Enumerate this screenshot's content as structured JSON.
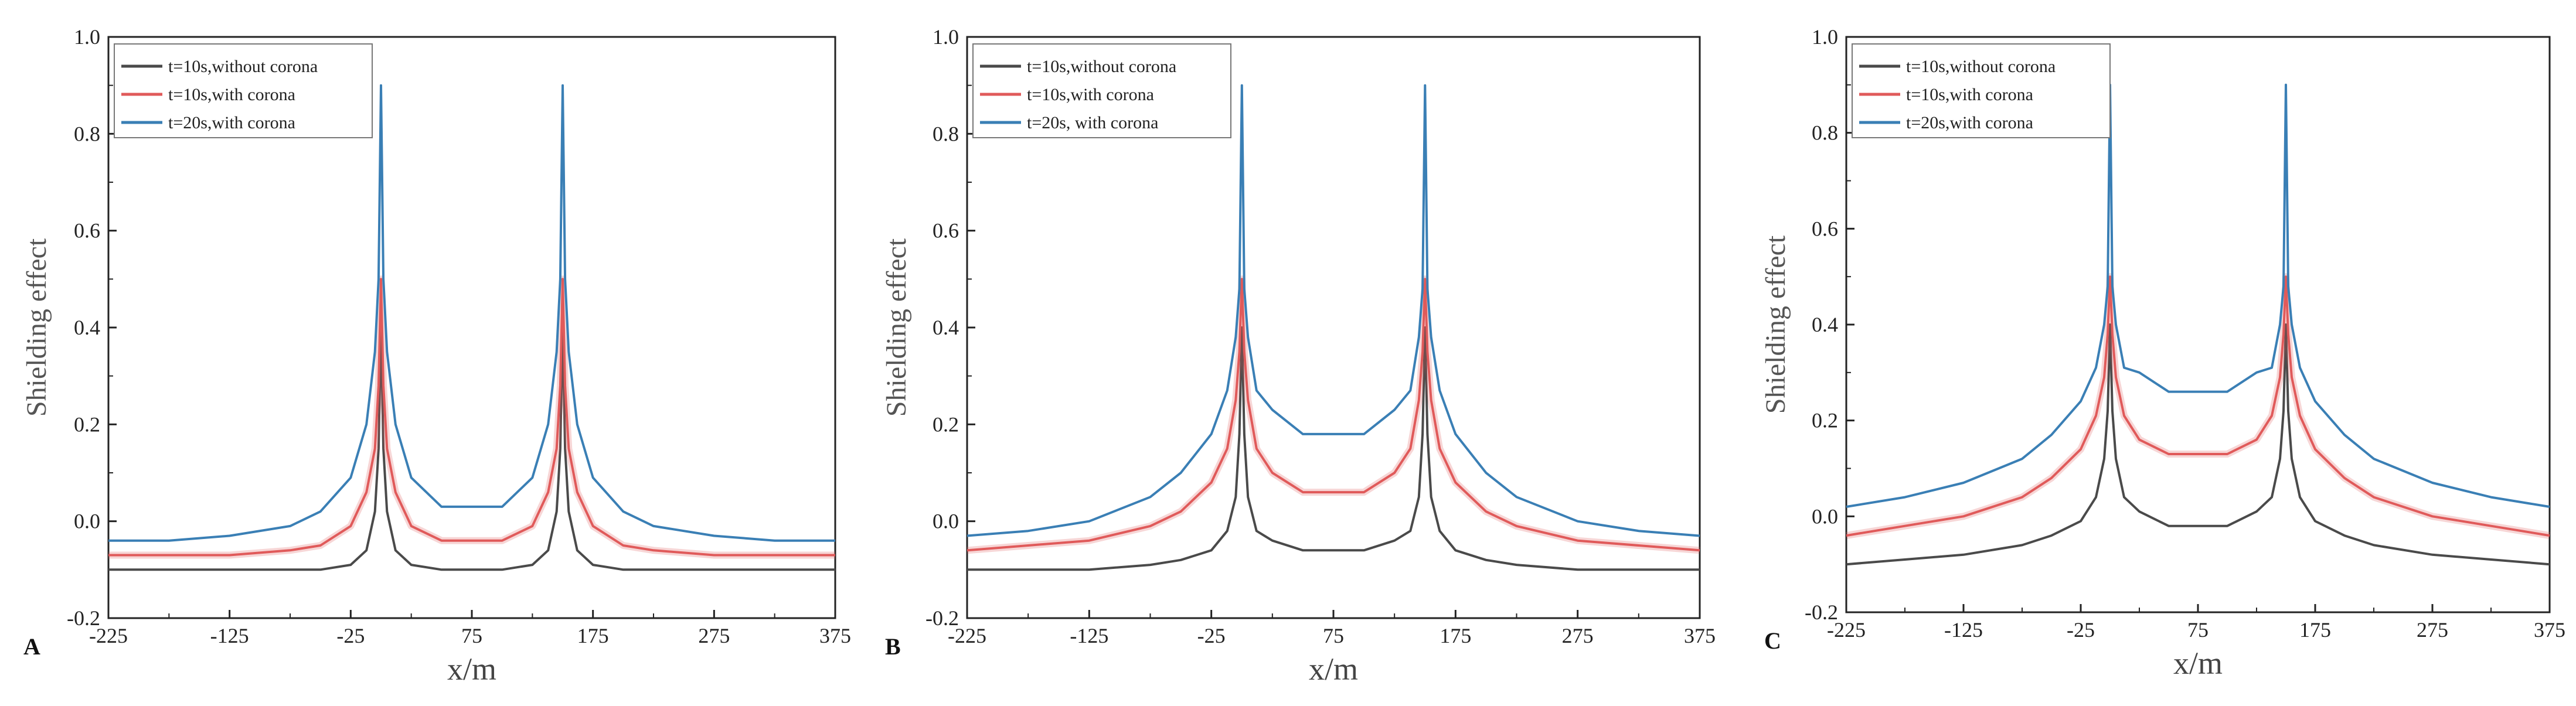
{
  "chart_data": [
    {
      "type": "line",
      "panel_label": "A",
      "xlabel": "x/m",
      "ylabel": "Shielding effect",
      "xlim": [
        -225,
        375
      ],
      "ylim": [
        -0.2,
        1.0
      ],
      "xticks": [
        "-225",
        "-125",
        "-25",
        "75",
        "175",
        "275",
        "375"
      ],
      "yticks": [
        "-0.2",
        "0.0",
        "0.2",
        "0.4",
        "0.6",
        "0.8",
        "1.0"
      ],
      "legend_position": "top-left",
      "x": [
        -225,
        -175,
        -125,
        -75,
        -50,
        -25,
        -12,
        -5,
        -2,
        0,
        2,
        5,
        12,
        25,
        50,
        75,
        100,
        125,
        138,
        145,
        148,
        150,
        152,
        155,
        162,
        175,
        200,
        225,
        275,
        325,
        375
      ],
      "series": [
        {
          "name": "t=10s,without corona",
          "color": "#4a4a4a",
          "values": [
            -0.1,
            -0.1,
            -0.1,
            -0.1,
            -0.1,
            -0.09,
            -0.06,
            0.02,
            0.15,
            0.4,
            0.15,
            0.02,
            -0.06,
            -0.09,
            -0.1,
            -0.1,
            -0.1,
            -0.09,
            -0.06,
            0.02,
            0.15,
            0.4,
            0.15,
            0.02,
            -0.06,
            -0.09,
            -0.1,
            -0.1,
            -0.1,
            -0.1,
            -0.1
          ]
        },
        {
          "name": "t=10s,with corona",
          "color": "#e05a5a",
          "values": [
            -0.07,
            -0.07,
            -0.07,
            -0.06,
            -0.05,
            -0.01,
            0.06,
            0.15,
            0.28,
            0.5,
            0.28,
            0.15,
            0.06,
            -0.01,
            -0.04,
            -0.04,
            -0.04,
            -0.01,
            0.06,
            0.15,
            0.28,
            0.5,
            0.28,
            0.15,
            0.06,
            -0.01,
            -0.05,
            -0.06,
            -0.07,
            -0.07,
            -0.07
          ]
        },
        {
          "name": "t=20s,with corona",
          "color": "#3a7fb5",
          "values": [
            -0.04,
            -0.04,
            -0.03,
            -0.01,
            0.02,
            0.09,
            0.2,
            0.35,
            0.5,
            0.9,
            0.5,
            0.35,
            0.2,
            0.09,
            0.03,
            0.03,
            0.03,
            0.09,
            0.2,
            0.35,
            0.5,
            0.9,
            0.5,
            0.35,
            0.2,
            0.09,
            0.02,
            -0.01,
            -0.03,
            -0.04,
            -0.04
          ]
        }
      ]
    },
    {
      "type": "line",
      "panel_label": "B",
      "xlabel": "x/m",
      "ylabel": "Shielding effect",
      "xlim": [
        -225,
        375
      ],
      "ylim": [
        -0.2,
        1.0
      ],
      "xticks": [
        "-225",
        "-125",
        "-25",
        "75",
        "175",
        "275",
        "375"
      ],
      "yticks": [
        "-0.2",
        "0.0",
        "0.2",
        "0.4",
        "0.6",
        "0.8",
        "1.0"
      ],
      "legend_position": "top-left",
      "x": [
        -225,
        -175,
        -125,
        -75,
        -50,
        -25,
        -12,
        -5,
        -2,
        0,
        2,
        5,
        12,
        25,
        50,
        75,
        100,
        125,
        138,
        145,
        148,
        150,
        152,
        155,
        162,
        175,
        200,
        225,
        275,
        325,
        375
      ],
      "series": [
        {
          "name": "t=10s,without corona",
          "color": "#4a4a4a",
          "values": [
            -0.1,
            -0.1,
            -0.1,
            -0.09,
            -0.08,
            -0.06,
            -0.02,
            0.05,
            0.18,
            0.4,
            0.18,
            0.05,
            -0.02,
            -0.04,
            -0.06,
            -0.06,
            -0.06,
            -0.04,
            -0.02,
            0.05,
            0.18,
            0.4,
            0.18,
            0.05,
            -0.02,
            -0.06,
            -0.08,
            -0.09,
            -0.1,
            -0.1,
            -0.1
          ]
        },
        {
          "name": "t=10s,with corona",
          "color": "#e05a5a",
          "values": [
            -0.06,
            -0.05,
            -0.04,
            -0.01,
            0.02,
            0.08,
            0.15,
            0.25,
            0.35,
            0.5,
            0.35,
            0.25,
            0.15,
            0.1,
            0.06,
            0.06,
            0.06,
            0.1,
            0.15,
            0.25,
            0.35,
            0.5,
            0.35,
            0.25,
            0.15,
            0.08,
            0.02,
            -0.01,
            -0.04,
            -0.05,
            -0.06
          ]
        },
        {
          "name": "t=20s, with corona",
          "color": "#3a7fb5",
          "values": [
            -0.03,
            -0.02,
            0.0,
            0.05,
            0.1,
            0.18,
            0.27,
            0.38,
            0.48,
            0.9,
            0.48,
            0.38,
            0.27,
            0.23,
            0.18,
            0.18,
            0.18,
            0.23,
            0.27,
            0.38,
            0.48,
            0.9,
            0.48,
            0.38,
            0.27,
            0.18,
            0.1,
            0.05,
            0.0,
            -0.02,
            -0.03
          ]
        }
      ]
    },
    {
      "type": "line",
      "panel_label": "C",
      "xlabel": "x/m",
      "ylabel": "Shielding effect",
      "xlim": [
        -225,
        375
      ],
      "ylim": [
        -0.2,
        1.0
      ],
      "xticks": [
        "-225",
        "-125",
        "-25",
        "75",
        "175",
        "275",
        "375"
      ],
      "yticks": [
        "-0.2",
        "0.0",
        "0.2",
        "0.4",
        "0.6",
        "0.8",
        "1.0"
      ],
      "legend_position": "top-left",
      "x": [
        -225,
        -175,
        -125,
        -75,
        -50,
        -25,
        -12,
        -5,
        -2,
        0,
        2,
        5,
        12,
        25,
        50,
        75,
        100,
        125,
        138,
        145,
        148,
        150,
        152,
        155,
        162,
        175,
        200,
        225,
        275,
        325,
        375
      ],
      "series": [
        {
          "name": "t=10s,without corona",
          "color": "#4a4a4a",
          "values": [
            -0.1,
            -0.09,
            -0.08,
            -0.06,
            -0.04,
            -0.01,
            0.04,
            0.12,
            0.22,
            0.4,
            0.22,
            0.12,
            0.04,
            0.01,
            -0.02,
            -0.02,
            -0.02,
            0.01,
            0.04,
            0.12,
            0.22,
            0.4,
            0.22,
            0.12,
            0.04,
            -0.01,
            -0.04,
            -0.06,
            -0.08,
            -0.09,
            -0.1
          ]
        },
        {
          "name": "t=10s,with corona",
          "color": "#e05a5a",
          "values": [
            -0.04,
            -0.02,
            0.0,
            0.04,
            0.08,
            0.14,
            0.21,
            0.29,
            0.38,
            0.5,
            0.38,
            0.29,
            0.21,
            0.16,
            0.13,
            0.13,
            0.13,
            0.16,
            0.21,
            0.29,
            0.38,
            0.5,
            0.38,
            0.29,
            0.21,
            0.14,
            0.08,
            0.04,
            0.0,
            -0.02,
            -0.04
          ]
        },
        {
          "name": "t=20s,with corona",
          "color": "#3a7fb5",
          "values": [
            0.02,
            0.04,
            0.07,
            0.12,
            0.17,
            0.24,
            0.31,
            0.4,
            0.48,
            0.9,
            0.48,
            0.4,
            0.31,
            0.3,
            0.26,
            0.26,
            0.26,
            0.3,
            0.31,
            0.4,
            0.48,
            0.9,
            0.48,
            0.4,
            0.31,
            0.24,
            0.17,
            0.12,
            0.07,
            0.04,
            0.02
          ]
        }
      ]
    }
  ]
}
